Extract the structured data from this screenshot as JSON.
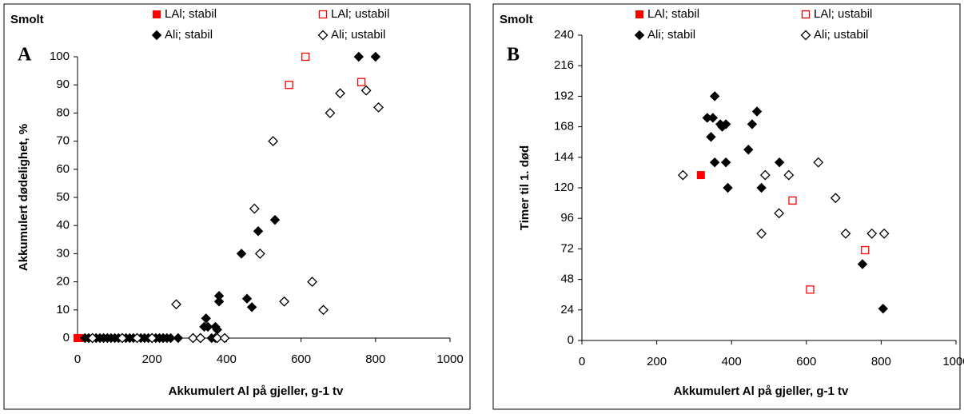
{
  "chart_data": [
    {
      "type": "scatter",
      "corner_label": "Smolt",
      "panel_label": "A",
      "xlabel": "Akkumulert Al på gjeller, g-1 tv",
      "ylabel": "Akkumulert dødelighet, %",
      "xlim": [
        0,
        1000
      ],
      "xticks": [
        0,
        200,
        400,
        600,
        800,
        1000
      ],
      "ylim": [
        0,
        100
      ],
      "yticks": [
        0,
        10,
        20,
        30,
        40,
        50,
        60,
        70,
        80,
        90,
        100
      ],
      "series": [
        {
          "name": "LAl; stabil",
          "color": "#ff0000",
          "marker": "filled-square",
          "x": [
            0,
            5,
            10
          ],
          "values": [
            0,
            0,
            0
          ]
        },
        {
          "name": "LAl; ustabil",
          "color": "#ff0000",
          "marker": "open-square",
          "x": [
            568,
            612,
            762
          ],
          "values": [
            90,
            100,
            91
          ]
        },
        {
          "name": "Ali; stabil",
          "color": "#000000",
          "marker": "filled-diamond",
          "x": [
            20,
            30,
            40,
            50,
            60,
            70,
            80,
            90,
            100,
            110,
            120,
            130,
            140,
            150,
            160,
            170,
            180,
            190,
            200,
            210,
            220,
            230,
            240,
            250,
            270,
            330,
            340,
            345,
            350,
            360,
            370,
            370,
            375,
            380,
            380,
            440,
            455,
            468,
            485,
            530,
            755,
            800
          ],
          "values": [
            0,
            0,
            0,
            0,
            0,
            0,
            0,
            0,
            0,
            0,
            0,
            0,
            0,
            0,
            0,
            0,
            0,
            0,
            0,
            0,
            0,
            0,
            0,
            0,
            0,
            0,
            4,
            7,
            4,
            0,
            4,
            0,
            3,
            13,
            15,
            30,
            14,
            11,
            38,
            42,
            100,
            100
          ]
        },
        {
          "name": "Ali; ustabil",
          "color": "#000000",
          "marker": "open-diamond",
          "x": [
            40,
            120,
            160,
            200,
            265,
            310,
            330,
            375,
            395,
            475,
            490,
            525,
            555,
            630,
            660,
            678,
            705,
            775,
            808
          ],
          "values": [
            0,
            0,
            0,
            0,
            12,
            0,
            0,
            0,
            0,
            46,
            30,
            70,
            13,
            20,
            10,
            80,
            87,
            88,
            82
          ]
        }
      ]
    },
    {
      "type": "scatter",
      "corner_label": "Smolt",
      "panel_label": "B",
      "xlabel": "Akkumulert Al på gjeller, g-1 tv",
      "ylabel": "Timer til 1. død",
      "xlim": [
        0,
        1000
      ],
      "xticks": [
        0,
        200,
        400,
        600,
        800,
        1000
      ],
      "ylim": [
        0,
        240
      ],
      "yticks": [
        0,
        24,
        48,
        72,
        96,
        120,
        144,
        168,
        192,
        216,
        240
      ],
      "series": [
        {
          "name": "LAl; stabil",
          "color": "#ff0000",
          "marker": "filled-square",
          "x": [
            318
          ],
          "values": [
            130
          ]
        },
        {
          "name": "LAl; ustabil",
          "color": "#ff0000",
          "marker": "open-square",
          "x": [
            563,
            610,
            757
          ],
          "values": [
            110,
            40,
            71
          ]
        },
        {
          "name": "Ali; stabil",
          "color": "#000000",
          "marker": "filled-diamond",
          "x": [
            335,
            345,
            350,
            355,
            355,
            370,
            375,
            385,
            385,
            390,
            445,
            455,
            468,
            480,
            528,
            750,
            805
          ],
          "values": [
            175,
            160,
            175,
            192,
            140,
            170,
            168,
            170,
            140,
            120,
            150,
            170,
            180,
            120,
            140,
            60,
            25
          ]
        },
        {
          "name": "Ali; ustabil",
          "color": "#000000",
          "marker": "open-diamond",
          "x": [
            270,
            480,
            490,
            527,
            553,
            632,
            678,
            705,
            775,
            808
          ],
          "values": [
            130,
            84,
            130,
            100,
            130,
            140,
            112,
            84,
            84,
            84
          ]
        }
      ]
    }
  ]
}
